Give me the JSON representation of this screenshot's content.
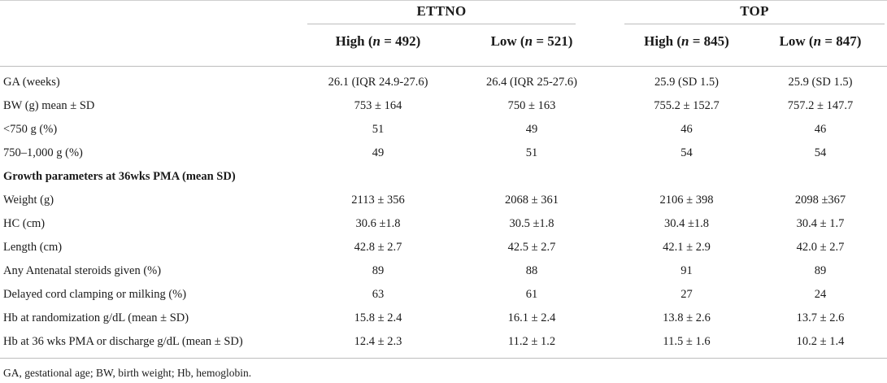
{
  "groups": {
    "ettno": "ETTNO",
    "top": "TOP"
  },
  "subheaders": {
    "ettno_high": {
      "pre": "High (",
      "n": "n",
      "post": " = 492)"
    },
    "ettno_low": {
      "pre": "Low (",
      "n": "n",
      "post": " = 521)"
    },
    "top_high": {
      "pre": "High (",
      "n": "n",
      "post": " = 845)"
    },
    "top_low": {
      "pre": "Low (",
      "n": "n",
      "post": " = 847)"
    }
  },
  "rows": [
    {
      "label": "GA (weeks)",
      "values": [
        "26.1 (IQR 24.9-27.6)",
        "26.4 (IQR 25-27.6)",
        "25.9 (SD 1.5)",
        "25.9 (SD 1.5)"
      ]
    },
    {
      "label": "BW (g) mean ± SD",
      "values": [
        "753 ± 164",
        "750 ± 163",
        "755.2 ± 152.7",
        "757.2 ± 147.7"
      ]
    },
    {
      "label": "<750 g (%)",
      "values": [
        "51",
        "49",
        "46",
        "46"
      ]
    },
    {
      "label": "750–1,000 g (%)",
      "values": [
        "49",
        "51",
        "54",
        "54"
      ]
    },
    {
      "label": "Growth parameters at 36wks PMA (mean SD)",
      "values": [
        "",
        "",
        "",
        ""
      ],
      "bold": true
    },
    {
      "label": "Weight (g)",
      "values": [
        "2113 ± 356",
        "2068 ± 361",
        "2106 ± 398",
        "2098 ±367"
      ]
    },
    {
      "label": "HC (cm)",
      "values": [
        "30.6 ±1.8",
        "30.5 ±1.8",
        "30.4 ±1.8",
        "30.4 ± 1.7"
      ]
    },
    {
      "label": "Length (cm)",
      "values": [
        "42.8 ± 2.7",
        "42.5 ± 2.7",
        "42.1 ± 2.9",
        "42.0 ± 2.7"
      ]
    },
    {
      "label": "Any Antenatal steroids given (%)",
      "values": [
        "89",
        "88",
        "91",
        "89"
      ]
    },
    {
      "label": "Delayed cord clamping or milking (%)",
      "values": [
        "63",
        "61",
        "27",
        "24"
      ]
    },
    {
      "label": "Hb at randomization g/dL (mean ± SD)",
      "values": [
        "15.8 ± 2.4",
        "16.1 ± 2.4",
        "13.8 ± 2.6",
        "13.7 ± 2.6"
      ]
    },
    {
      "label": "Hb at 36 wks PMA or discharge g/dL (mean ± SD)",
      "values": [
        "12.4 ± 2.3",
        "11.2 ± 1.2",
        "11.5 ± 1.6",
        "10.2 ± 1.4"
      ]
    }
  ],
  "footnote": "GA, gestational age; BW, birth weight; Hb, hemoglobin."
}
